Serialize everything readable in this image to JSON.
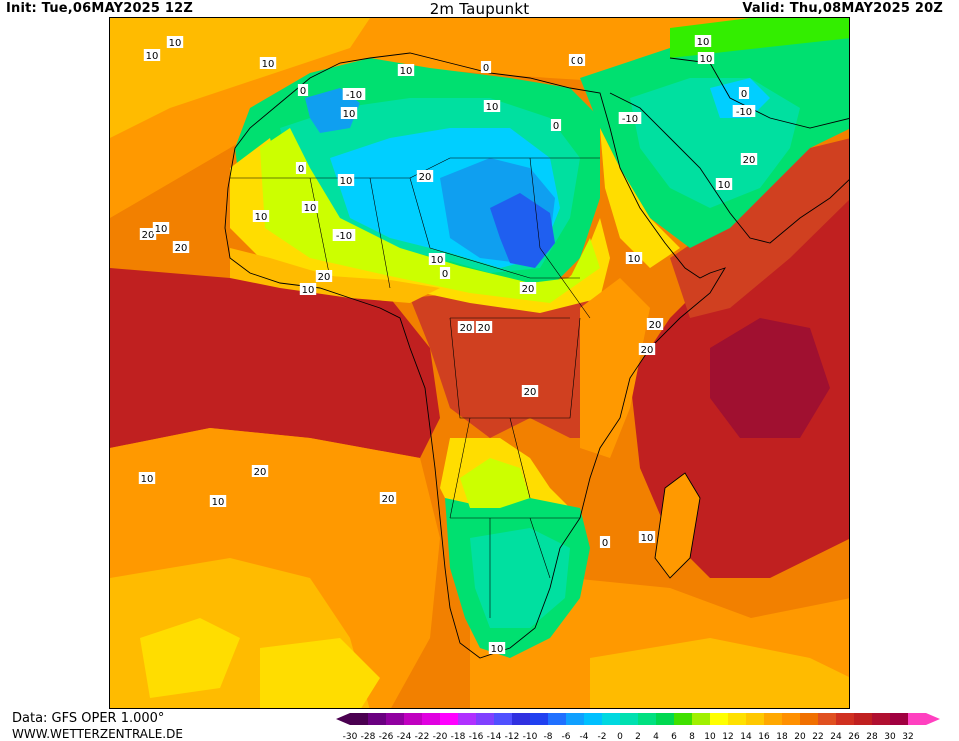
{
  "header": {
    "init": "Init: Tue,06MAY2025 12Z",
    "title": "2m Taupunkt",
    "valid": "Valid: Thu,08MAY2025 20Z"
  },
  "footer": {
    "source": "Data: GFS OPER 1.000°",
    "site": "WWW.WETTERZENTRALE.DE"
  },
  "map_labels": [
    "10",
    "10",
    "-10",
    "0",
    "10",
    "0",
    "-10",
    "20",
    "10",
    "20",
    "20",
    "10",
    "20",
    "20",
    "20",
    "20",
    "10",
    "0",
    "10",
    "20",
    "10",
    "20",
    "0",
    "10",
    "10",
    "20",
    "20",
    "10",
    "20",
    "10",
    "0",
    "10",
    "10",
    "10",
    "10",
    "10",
    "10",
    "0",
    "0",
    "10",
    "-10",
    "-10",
    "0",
    "0",
    "20",
    "10"
  ],
  "colors": {
    "c_m10": "#1f1ff0",
    "c_m8": "#1f5ff0",
    "c_m6": "#0f9ff0",
    "c_m4": "#00cfff",
    "c_m2": "#00d8d0",
    "c_0": "#00e0a0",
    "c_2": "#00e070",
    "c_4": "#00d840",
    "c_6": "#33ee00",
    "c_8": "#ccff00",
    "c_10": "#ffff00",
    "c_12": "#ffdd00",
    "c_14": "#ffbb00",
    "c_16": "#ff9900",
    "c_18": "#f28000",
    "c_20": "#e06020",
    "c_22": "#d04020",
    "c_24": "#c02020",
    "c_26": "#a01030"
  },
  "colorscale": {
    "ticks": [
      "-30",
      "-28",
      "-26",
      "-24",
      "-22",
      "-20",
      "-18",
      "-16",
      "-14",
      "-12",
      "-10",
      "-8",
      "-6",
      "-4",
      "-2",
      "0",
      "2",
      "4",
      "6",
      "8",
      "10",
      "12",
      "14",
      "16",
      "18",
      "20",
      "22",
      "24",
      "26",
      "28",
      "30",
      "32"
    ],
    "colors": [
      "#4a0050",
      "#6a0080",
      "#9000a0",
      "#c000c0",
      "#e000e0",
      "#ff00ff",
      "#b030ff",
      "#8040ff",
      "#5050ff",
      "#3030e0",
      "#2040f0",
      "#2070ff",
      "#10a0ff",
      "#00c0ff",
      "#00d8e0",
      "#00e0b0",
      "#00e080",
      "#00d850",
      "#40e000",
      "#a0f000",
      "#ffff00",
      "#ffe000",
      "#ffc800",
      "#ffa800",
      "#ff9000",
      "#f07000",
      "#e05020",
      "#d03020",
      "#c02020",
      "#b01030",
      "#a00040",
      "#ff40c0"
    ]
  }
}
